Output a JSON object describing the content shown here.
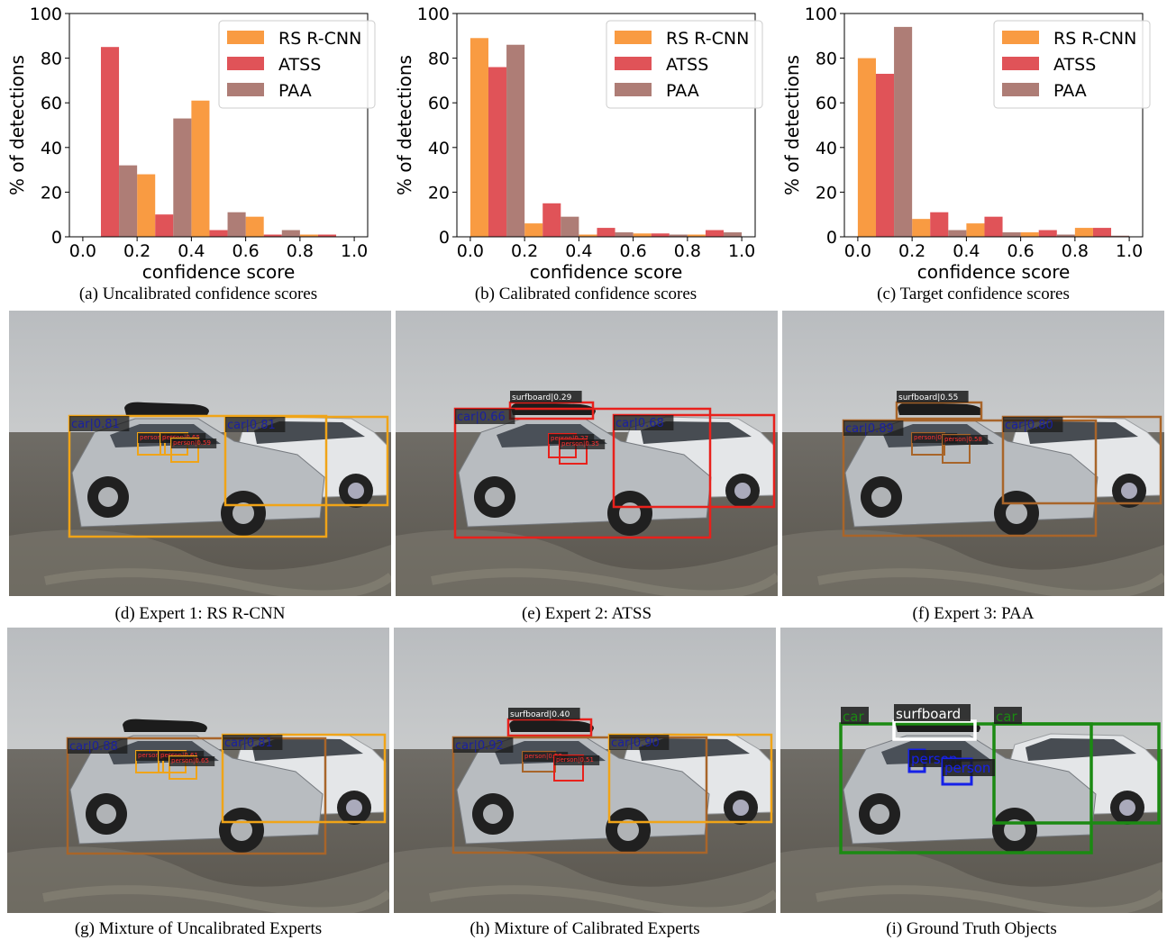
{
  "chart_data": [
    {
      "type": "bar",
      "title": "",
      "xlabel": "confidence score",
      "ylabel": "% of detections",
      "xlim": [
        0.0,
        1.0
      ],
      "ylim": [
        0,
        100
      ],
      "xticks": [
        "0.0",
        "0.2",
        "0.4",
        "0.6",
        "0.8",
        "1.0"
      ],
      "yticks": [
        "0",
        "20",
        "40",
        "60",
        "80",
        "100"
      ],
      "bin_centers": [
        0.1,
        0.3,
        0.5,
        0.7,
        0.9
      ],
      "legend_position": "top-right",
      "series": [
        {
          "name": "RS R-CNN",
          "color": "#f99b42",
          "values": [
            0,
            28,
            61,
            9,
            1
          ]
        },
        {
          "name": "ATSS",
          "color": "#e05358",
          "values": [
            85,
            10,
            3,
            1,
            1
          ]
        },
        {
          "name": "PAA",
          "color": "#ae7d76",
          "values": [
            32,
            53,
            11,
            3,
            0
          ]
        }
      ]
    },
    {
      "type": "bar",
      "title": "",
      "xlabel": "confidence score",
      "ylabel": "% of detections",
      "xlim": [
        0.0,
        1.0
      ],
      "ylim": [
        0,
        100
      ],
      "xticks": [
        "0.0",
        "0.2",
        "0.4",
        "0.6",
        "0.8",
        "1.0"
      ],
      "yticks": [
        "0",
        "20",
        "40",
        "60",
        "80",
        "100"
      ],
      "bin_centers": [
        0.1,
        0.3,
        0.5,
        0.7,
        0.9
      ],
      "legend_position": "top-right",
      "series": [
        {
          "name": "RS R-CNN",
          "color": "#f99b42",
          "values": [
            89,
            6,
            1,
            1.5,
            1
          ]
        },
        {
          "name": "ATSS",
          "color": "#e05358",
          "values": [
            76,
            15,
            4,
            1.5,
            3
          ]
        },
        {
          "name": "PAA",
          "color": "#ae7d76",
          "values": [
            86,
            9,
            2,
            1,
            2
          ]
        }
      ]
    },
    {
      "type": "bar",
      "title": "",
      "xlabel": "confidence score",
      "ylabel": "% of detections",
      "xlim": [
        0.0,
        1.0
      ],
      "ylim": [
        0,
        100
      ],
      "xticks": [
        "0.0",
        "0.2",
        "0.4",
        "0.6",
        "0.8",
        "1.0"
      ],
      "yticks": [
        "0",
        "20",
        "40",
        "60",
        "80",
        "100"
      ],
      "bin_centers": [
        0.1,
        0.3,
        0.5,
        0.7,
        0.9
      ],
      "legend_position": "top-right",
      "series": [
        {
          "name": "RS R-CNN",
          "color": "#f99b42",
          "values": [
            80,
            8,
            6,
            2,
            4
          ]
        },
        {
          "name": "ATSS",
          "color": "#e05358",
          "values": [
            73,
            11,
            9,
            3,
            4
          ]
        },
        {
          "name": "PAA",
          "color": "#ae7d76",
          "values": [
            94,
            3,
            2,
            1,
            0.5
          ]
        }
      ]
    }
  ],
  "captions": {
    "a": "(a) Uncalibrated confidence scores",
    "b": "(b) Calibrated confidence scores",
    "c": "(c) Target confidence scores",
    "d": "(d) Expert 1: RS R-CNN",
    "e": "(e) Expert 2: ATSS",
    "f": "(f) Expert 3: PAA",
    "g": "(g) Mixture of Uncalibrated Experts",
    "h": "(h) Mixture of Calibrated Experts",
    "i": "(i) Ground Truth Objects"
  },
  "detections": {
    "d": {
      "car1": "car|0.81",
      "car2": "car|0.81",
      "person1": "person|0.65",
      "person2": "person|0.65",
      "person3": "person|0.59"
    },
    "e": {
      "surfboard": "surfboard|0.29",
      "car1": "car|0.66",
      "car2": "car|0.68",
      "person1": "person|0.27",
      "person2": "person|0.35"
    },
    "f": {
      "surfboard": "surfboard|0.55",
      "car1": "car|0.89",
      "car2": "car|0.80",
      "person1": "person|0.54",
      "person2": "person|0.58"
    },
    "g": {
      "car1": "car|0.88",
      "car2": "car|0.81",
      "person1": "person|0.65",
      "person2": "person|0.61",
      "person3": "person|0.65"
    },
    "h": {
      "surfboard": "surfboard|0.40",
      "car1": "car|0.92",
      "car2": "car|0.90",
      "person1": "person|0.52",
      "person2": "person|0.51"
    },
    "i": {
      "car1": "car",
      "car2": "car",
      "surfboard": "surfboard",
      "person1": "person",
      "person2": "person"
    }
  },
  "colors": {
    "rs": "#f99b42",
    "atss": "#e05358",
    "paa": "#ae7d76",
    "uncal_orange": "#f0a418",
    "atss_red": "#e8211c",
    "paa_brown": "#a8652a",
    "gt_green": "#1b8a12",
    "gt_blue": "#1621e8",
    "gt_white": "#ffffff"
  }
}
